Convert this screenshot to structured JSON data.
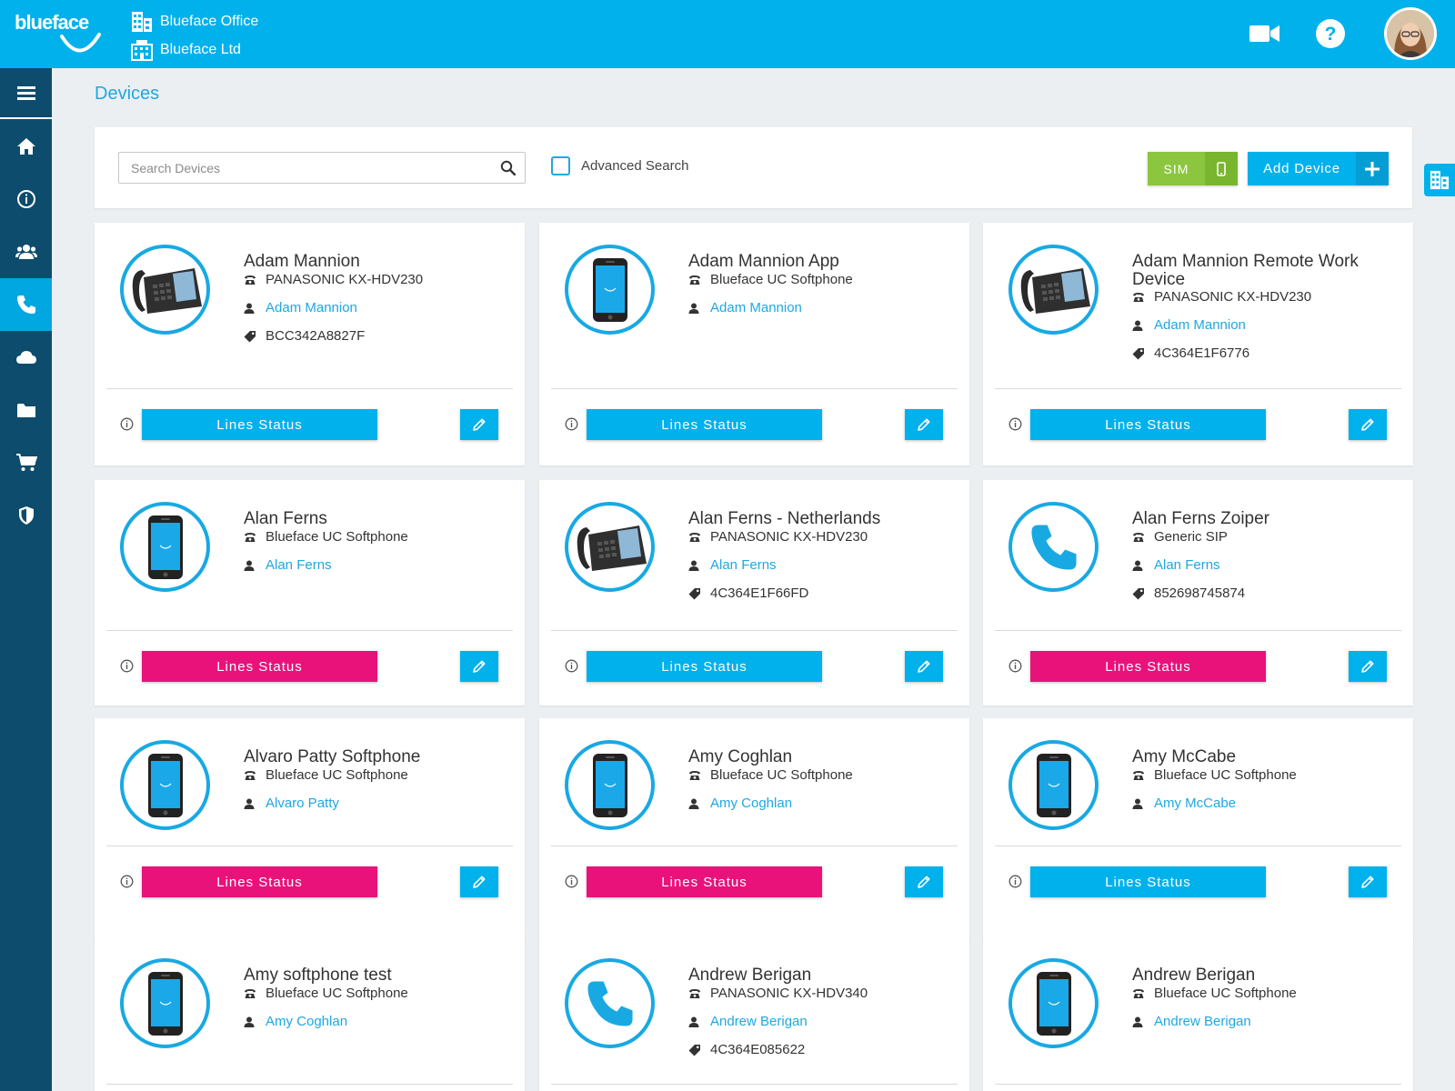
{
  "brand": {
    "logo_text": "blueface",
    "accent": "#00b1ec",
    "pink": "#e9127b",
    "green": "#8cc63f",
    "sidebar": "#0d4c6c"
  },
  "header": {
    "org_primary": "Blueface Office",
    "org_secondary": "Blueface Ltd",
    "icons": [
      "video-camera-icon",
      "help-icon"
    ]
  },
  "sidebar": {
    "items": [
      {
        "icon": "menu-icon"
      },
      {
        "icon": "home-icon"
      },
      {
        "icon": "info-icon"
      },
      {
        "icon": "users-icon"
      },
      {
        "icon": "phone-icon",
        "active": true
      },
      {
        "icon": "cloud-icon"
      },
      {
        "icon": "folder-icon"
      },
      {
        "icon": "cart-icon"
      },
      {
        "icon": "shield-icon"
      }
    ]
  },
  "page": {
    "title": "Devices"
  },
  "search": {
    "placeholder": "Search Devices",
    "advanced_label": "Advanced Search",
    "sim_label": "SIM",
    "add_label": "Add Device"
  },
  "lines_status_label": "Lines Status",
  "devices": [
    {
      "name": "Adam Mannion",
      "model": "PANASONIC KX-HDV230",
      "user": "Adam Mannion",
      "mac": "BCC342A8827F",
      "image": "desk-phone",
      "status": "blue"
    },
    {
      "name": "Adam Mannion App",
      "model": "Blueface UC Softphone",
      "user": "Adam Mannion",
      "mac": "",
      "image": "smartphone",
      "status": "blue"
    },
    {
      "name": "Adam Mannion Remote Work Device",
      "model": "PANASONIC KX-HDV230",
      "user": "Adam Mannion",
      "mac": "4C364E1F6776",
      "image": "desk-phone",
      "status": "blue"
    },
    {
      "name": "Alan Ferns",
      "model": "Blueface UC Softphone",
      "user": "Alan Ferns",
      "mac": "",
      "image": "smartphone",
      "status": "pink"
    },
    {
      "name": "Alan Ferns - Netherlands",
      "model": "PANASONIC KX-HDV230",
      "user": "Alan Ferns",
      "mac": "4C364E1F66FD",
      "image": "desk-phone",
      "status": "blue"
    },
    {
      "name": "Alan Ferns Zoiper",
      "model": "Generic SIP",
      "user": "Alan Ferns",
      "mac": "852698745874",
      "image": "handset",
      "status": "pink"
    },
    {
      "name": "Alvaro Patty Softphone",
      "model": "Blueface UC Softphone",
      "user": "Alvaro Patty",
      "mac": "",
      "image": "smartphone",
      "status": "pink"
    },
    {
      "name": "Amy Coghlan",
      "model": "Blueface UC Softphone",
      "user": "Amy Coghlan",
      "mac": "",
      "image": "smartphone",
      "status": "pink"
    },
    {
      "name": "Amy McCabe",
      "model": "Blueface UC Softphone",
      "user": "Amy McCabe",
      "mac": "",
      "image": "smartphone",
      "status": "blue"
    },
    {
      "name": "Amy softphone test",
      "model": "Blueface UC Softphone",
      "user": "Amy Coghlan",
      "mac": "",
      "image": "smartphone",
      "status": "none"
    },
    {
      "name": "Andrew Berigan",
      "model": "PANASONIC KX-HDV340",
      "user": "Andrew Berigan",
      "mac": "4C364E085622",
      "image": "handset",
      "status": "none"
    },
    {
      "name": "Andrew Berigan",
      "model": "Blueface UC Softphone",
      "user": "Andrew Berigan",
      "mac": "",
      "image": "smartphone",
      "status": "none"
    }
  ]
}
